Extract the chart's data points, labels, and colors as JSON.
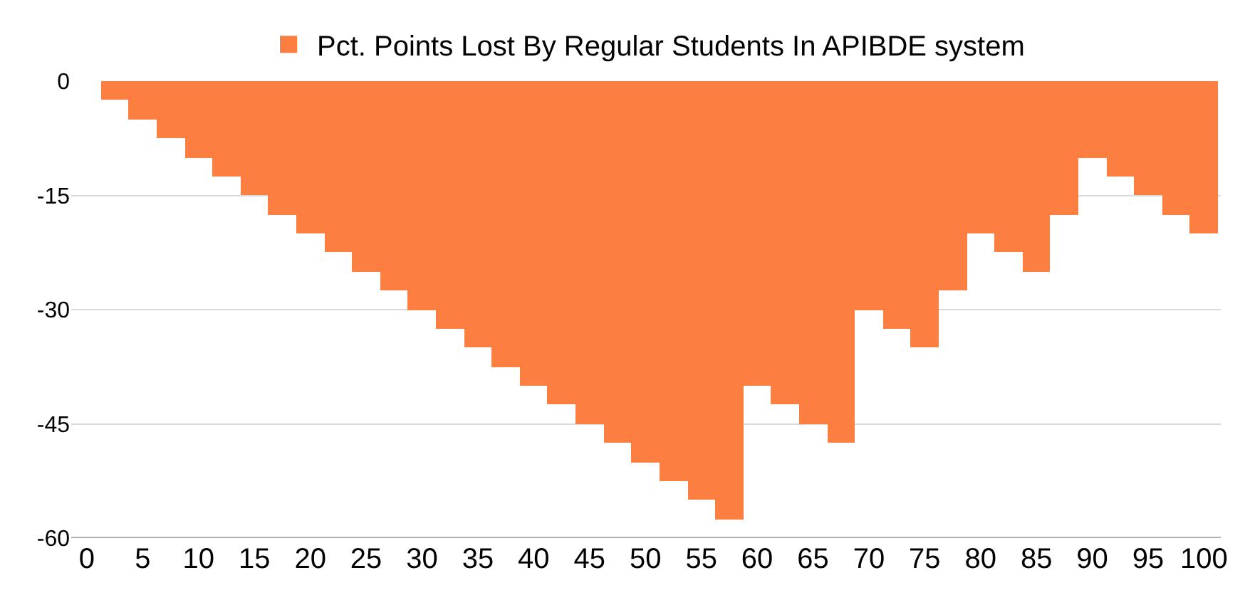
{
  "chart_data": {
    "type": "bar",
    "x": [
      2.5,
      5,
      7.5,
      10,
      12.5,
      15,
      17.5,
      20,
      22.5,
      25,
      27.5,
      30,
      32.5,
      35,
      37.5,
      40,
      42.5,
      45,
      47.5,
      50,
      52.5,
      55,
      57.5,
      60,
      62.5,
      65,
      67.5,
      70,
      72.5,
      75,
      77.5,
      80,
      82.5,
      85,
      87.5,
      90,
      92.5,
      95,
      97.5,
      100
    ],
    "series": [
      {
        "name": "Pct. Points Lost By Regular Students In APIBDE system",
        "color": "#fd7e41",
        "values": [
          -2.5,
          -5,
          -7.5,
          -10,
          -12.5,
          -15,
          -17.5,
          -20,
          -22.5,
          -25,
          -27.5,
          -30,
          -32.5,
          -35,
          -37.5,
          -40,
          -42.5,
          -45,
          -47.5,
          -50,
          -52.5,
          -55,
          -57.5,
          -40,
          -42.5,
          -45,
          -47.5,
          -30,
          -32.5,
          -35,
          -27.5,
          -20,
          -22.5,
          -25,
          -17.5,
          -10,
          -12.5,
          -15,
          -17.5,
          -20
        ]
      }
    ],
    "xlim": [
      -1.4,
      101.5
    ],
    "xticks": [
      0,
      5,
      10,
      15,
      20,
      25,
      30,
      35,
      40,
      45,
      50,
      55,
      60,
      65,
      70,
      75,
      80,
      85,
      90,
      95,
      100
    ],
    "ylim": [
      -60,
      0
    ],
    "yticks": [
      0,
      -15,
      -30,
      -45,
      -60
    ],
    "grid": "y",
    "legend": "top"
  }
}
